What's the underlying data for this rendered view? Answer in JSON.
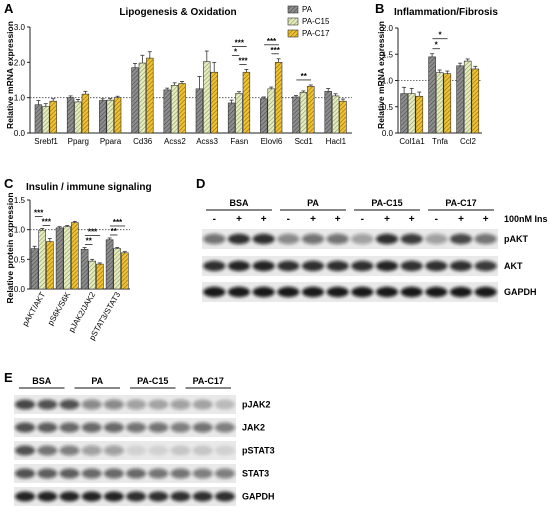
{
  "panels": {
    "A": {
      "letter": "A",
      "title": "Lipogenesis & Oxidation",
      "ylabel": "Relative mRNA expression"
    },
    "B": {
      "letter": "B",
      "title": "Inflammation/Fibrosis",
      "ylabel": "Relative mRNA expression"
    },
    "C": {
      "letter": "C",
      "title": "Insulin / immune signaling",
      "ylabel": "Relative protein expression"
    },
    "D": {
      "letter": "D",
      "groups": [
        "BSA",
        "PA",
        "PA-C15",
        "PA-C17"
      ],
      "treatment_label": "100nM Ins",
      "signs": [
        "-",
        "+",
        "+",
        "-",
        "+",
        "+",
        "-",
        "+",
        "+",
        "-",
        "+",
        "+"
      ],
      "bands": [
        "pAKT",
        "AKT",
        "GAPDH"
      ]
    },
    "E": {
      "letter": "E",
      "groups": [
        "BSA",
        "PA",
        "PA-C15",
        "PA-C17"
      ],
      "bands": [
        "pJAK2",
        "JAK2",
        "pSTAT3",
        "STAT3",
        "GAPDH"
      ]
    }
  },
  "legend": {
    "items": [
      "PA",
      "PA-C15",
      "PA-C17"
    ]
  },
  "chart_data": [
    {
      "type": "bar",
      "panel": "A",
      "title": "Lipogenesis & Oxidation",
      "ylabel": "Relative mRNA expression",
      "categories": [
        "Srebf1",
        "Pparg",
        "Ppara",
        "Cd36",
        "Acss2",
        "Acss3",
        "Fasn",
        "Elovl6",
        "Scd1",
        "Hacl1"
      ],
      "ylim": [
        0,
        3
      ],
      "yticks": [
        "0.0",
        "1.0",
        "2.0",
        "3.0"
      ],
      "reference_line": 1,
      "series": [
        {
          "name": "PA",
          "values": [
            0.8,
            1.0,
            0.92,
            1.85,
            1.22,
            1.25,
            0.85,
            0.97,
            1.02,
            1.18
          ],
          "errors": [
            0.12,
            0.05,
            0.05,
            0.12,
            0.05,
            0.35,
            0.08,
            0.05,
            0.04,
            0.08
          ]
        },
        {
          "name": "PA-C15",
          "values": [
            0.75,
            0.88,
            0.93,
            1.98,
            1.35,
            2.02,
            1.12,
            1.25,
            1.15,
            1.05
          ],
          "errors": [
            0.08,
            0.07,
            0.05,
            0.22,
            0.07,
            0.3,
            0.05,
            0.05,
            0.04,
            0.06
          ]
        },
        {
          "name": "PA-C17",
          "values": [
            0.9,
            1.1,
            1.0,
            2.12,
            1.4,
            1.72,
            1.72,
            2.0,
            1.32,
            0.9
          ],
          "errors": [
            0.07,
            0.08,
            0.04,
            0.18,
            0.06,
            0.28,
            0.08,
            0.1,
            0.04,
            0.06
          ]
        }
      ],
      "significance": [
        {
          "category": "Fasn",
          "from": 0,
          "to": 2,
          "label": "***"
        },
        {
          "category": "Fasn",
          "from": 0,
          "to": 1,
          "label": "*"
        },
        {
          "category": "Fasn",
          "from": 1,
          "to": 2,
          "label": "***"
        },
        {
          "category": "Elovl6",
          "from": 0,
          "to": 2,
          "label": "***"
        },
        {
          "category": "Elovl6",
          "from": 1,
          "to": 2,
          "label": "***"
        },
        {
          "category": "Scd1",
          "from": 0,
          "to": 2,
          "label": "**"
        }
      ]
    },
    {
      "type": "bar",
      "panel": "B",
      "title": "Inflammation/Fibrosis",
      "ylabel": "Relative mRNA expression",
      "categories": [
        "Col1a1",
        "Tnfa",
        "Ccl2"
      ],
      "ylim": [
        0,
        2
      ],
      "yticks": [
        "0.0",
        "0.5",
        "1.0",
        "1.5",
        "2.0"
      ],
      "reference_line": 1,
      "series": [
        {
          "name": "PA",
          "values": [
            0.75,
            1.45,
            1.28
          ],
          "errors": [
            0.12,
            0.06,
            0.05
          ]
        },
        {
          "name": "PA-C15",
          "values": [
            0.75,
            1.15,
            1.37
          ],
          "errors": [
            0.1,
            0.05,
            0.04
          ]
        },
        {
          "name": "PA-C17",
          "values": [
            0.7,
            1.13,
            1.22
          ],
          "errors": [
            0.08,
            0.05,
            0.05
          ]
        }
      ],
      "significance": [
        {
          "category": "Tnfa",
          "from": 0,
          "to": 2,
          "label": "*"
        },
        {
          "category": "Tnfa",
          "from": 0,
          "to": 1,
          "label": "*"
        }
      ]
    },
    {
      "type": "bar",
      "panel": "C",
      "title": "Insulin / immune signaling",
      "ylabel": "Relative protein expression",
      "categories": [
        "pAKT/AKT",
        "pS6K/S6K",
        "pJAK2/JAK2",
        "pSTAT3/STAT3"
      ],
      "ylim": [
        0,
        1.5
      ],
      "yticks": [
        "0.0",
        "0.5",
        "1.0",
        "1.5"
      ],
      "reference_line": 1,
      "series": [
        {
          "name": "PA",
          "values": [
            0.68,
            1.03,
            0.67,
            0.83
          ],
          "errors": [
            0.04,
            0.02,
            0.03,
            0.03
          ]
        },
        {
          "name": "PA-C15",
          "values": [
            0.99,
            1.05,
            0.47,
            0.68
          ],
          "errors": [
            0.03,
            0.02,
            0.03,
            0.02
          ]
        },
        {
          "name": "PA-C17",
          "values": [
            0.8,
            1.12,
            0.42,
            0.61
          ],
          "errors": [
            0.05,
            0.02,
            0.02,
            0.02
          ]
        }
      ],
      "significance": [
        {
          "category": "pAKT/AKT",
          "from": 0,
          "to": 1,
          "label": "***"
        },
        {
          "category": "pAKT/AKT",
          "from": 1,
          "to": 2,
          "label": "***"
        },
        {
          "category": "pJAK2/JAK2",
          "from": 0,
          "to": 2,
          "label": "***"
        },
        {
          "category": "pJAK2/JAK2",
          "from": 0,
          "to": 1,
          "label": "**"
        },
        {
          "category": "pSTAT3/STAT3",
          "from": 0,
          "to": 2,
          "label": "***"
        },
        {
          "category": "pSTAT3/STAT3",
          "from": 0,
          "to": 1,
          "label": "**"
        }
      ]
    }
  ]
}
